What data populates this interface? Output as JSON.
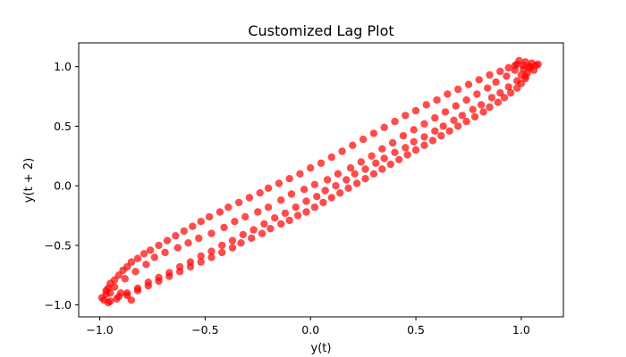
{
  "chart_data": {
    "type": "scatter",
    "title": "Customized Lag Plot",
    "xlabel": "y(t)",
    "ylabel": "y(t + 2)",
    "xlim": [
      -1.1,
      1.2
    ],
    "ylim": [
      -1.1,
      1.2
    ],
    "xticks": [
      -1.0,
      -0.5,
      0.0,
      0.5,
      1.0
    ],
    "yticks": [
      -1.0,
      -0.5,
      0.0,
      0.5,
      1.0
    ],
    "xtick_labels": [
      "−1.0",
      "−0.5",
      "0.0",
      "0.5",
      "1.0"
    ],
    "ytick_labels": [
      "−1.0",
      "−0.5",
      "0.0",
      "0.5",
      "1.0"
    ],
    "grid": false,
    "marker_color": "#ff0000",
    "marker_alpha": 0.7,
    "series": [
      {
        "values": [
          [
            -0.98,
            -0.96
          ],
          [
            -0.97,
            -0.91
          ],
          [
            -0.96,
            -0.86
          ],
          [
            -0.95,
            -0.82
          ],
          [
            -0.93,
            -0.79
          ],
          [
            -0.91,
            -0.75
          ],
          [
            -0.89,
            -0.71
          ],
          [
            -0.87,
            -0.68
          ],
          [
            -0.85,
            -0.64
          ],
          [
            -0.82,
            -0.61
          ],
          [
            -0.79,
            -0.57
          ],
          [
            -0.76,
            -0.54
          ],
          [
            -0.72,
            -0.5
          ],
          [
            -0.68,
            -0.46
          ],
          [
            -0.64,
            -0.42
          ],
          [
            -0.6,
            -0.38
          ],
          [
            -0.56,
            -0.34
          ],
          [
            -0.52,
            -0.3
          ],
          [
            -0.48,
            -0.26
          ],
          [
            -0.43,
            -0.22
          ],
          [
            -0.39,
            -0.18
          ],
          [
            -0.34,
            -0.14
          ],
          [
            -0.29,
            -0.1
          ],
          [
            -0.24,
            -0.06
          ],
          [
            -0.2,
            -0.02
          ],
          [
            -0.15,
            0.02
          ],
          [
            -0.1,
            0.06
          ],
          [
            -0.05,
            0.1
          ],
          [
            0.0,
            0.15
          ],
          [
            0.05,
            0.19
          ],
          [
            0.1,
            0.24
          ],
          [
            0.15,
            0.29
          ],
          [
            0.2,
            0.34
          ],
          [
            0.25,
            0.39
          ],
          [
            0.3,
            0.44
          ],
          [
            0.35,
            0.49
          ],
          [
            0.4,
            0.54
          ],
          [
            0.45,
            0.59
          ],
          [
            0.5,
            0.63
          ],
          [
            0.55,
            0.68
          ],
          [
            0.6,
            0.72
          ],
          [
            0.65,
            0.77
          ],
          [
            0.7,
            0.81
          ],
          [
            0.75,
            0.85
          ],
          [
            0.8,
            0.89
          ],
          [
            0.85,
            0.93
          ],
          [
            0.9,
            0.96
          ],
          [
            0.94,
            0.99
          ],
          [
            0.98,
            1.02
          ],
          [
            1.02,
            1.04
          ],
          [
            1.05,
            1.03
          ],
          [
            1.04,
            1.0
          ],
          [
            1.06,
            0.97
          ],
          [
            1.03,
            0.95
          ],
          [
            0.99,
            1.05
          ],
          [
            1.01,
            0.98
          ],
          [
            0.97,
            1.01
          ],
          [
            1.08,
            1.02
          ],
          [
            1.0,
            0.93
          ],
          [
            1.02,
            0.9
          ],
          [
            1.0,
            0.86
          ],
          [
            0.98,
            0.82
          ],
          [
            0.95,
            0.78
          ],
          [
            0.92,
            0.74
          ],
          [
            0.89,
            0.7
          ],
          [
            0.85,
            0.66
          ],
          [
            0.82,
            0.62
          ],
          [
            0.78,
            0.58
          ],
          [
            0.74,
            0.54
          ],
          [
            0.7,
            0.5
          ],
          [
            0.66,
            0.46
          ],
          [
            0.62,
            0.42
          ],
          [
            0.58,
            0.38
          ],
          [
            0.54,
            0.34
          ],
          [
            0.5,
            0.3
          ],
          [
            0.46,
            0.26
          ],
          [
            0.42,
            0.22
          ],
          [
            0.38,
            0.18
          ],
          [
            0.34,
            0.14
          ],
          [
            0.3,
            0.1
          ],
          [
            0.26,
            0.06
          ],
          [
            0.22,
            0.02
          ],
          [
            0.18,
            -0.02
          ],
          [
            0.14,
            -0.06
          ],
          [
            0.1,
            -0.1
          ],
          [
            0.06,
            -0.14
          ],
          [
            0.02,
            -0.18
          ],
          [
            -0.02,
            -0.22
          ],
          [
            -0.06,
            -0.25
          ],
          [
            -0.1,
            -0.29
          ],
          [
            -0.14,
            -0.32
          ],
          [
            -0.19,
            -0.36
          ],
          [
            -0.23,
            -0.4
          ],
          [
            -0.28,
            -0.44
          ],
          [
            -0.33,
            -0.48
          ],
          [
            -0.37,
            -0.52
          ],
          [
            -0.42,
            -0.56
          ],
          [
            -0.47,
            -0.6
          ],
          [
            -0.52,
            -0.64
          ],
          [
            -0.57,
            -0.68
          ],
          [
            -0.62,
            -0.72
          ],
          [
            -0.67,
            -0.76
          ],
          [
            -0.72,
            -0.8
          ],
          [
            -0.77,
            -0.84
          ],
          [
            -0.82,
            -0.88
          ],
          [
            -0.87,
            -0.92
          ],
          [
            -0.92,
            -0.95
          ],
          [
            -0.96,
            -0.98
          ],
          [
            -0.99,
            -0.94
          ],
          [
            -0.97,
            -0.88
          ],
          [
            -0.95,
            -0.97
          ],
          [
            -0.9,
            -0.9
          ],
          [
            -0.93,
            -0.85
          ],
          [
            -0.85,
            -0.96
          ],
          [
            -0.88,
            -0.78
          ],
          [
            -0.83,
            -0.72
          ],
          [
            -0.78,
            -0.66
          ],
          [
            -0.74,
            -0.6
          ],
          [
            -0.69,
            -0.56
          ],
          [
            -0.63,
            -0.52
          ],
          [
            -0.58,
            -0.48
          ],
          [
            -0.53,
            -0.44
          ],
          [
            -0.47,
            -0.4
          ],
          [
            -0.41,
            -0.35
          ],
          [
            -0.36,
            -0.3
          ],
          [
            -0.31,
            -0.26
          ],
          [
            -0.25,
            -0.22
          ],
          [
            -0.2,
            -0.18
          ],
          [
            -0.14,
            -0.12
          ],
          [
            -0.09,
            -0.07
          ],
          [
            -0.03,
            -0.03
          ],
          [
            0.02,
            0.01
          ],
          [
            0.08,
            0.05
          ],
          [
            0.13,
            0.1
          ],
          [
            0.19,
            0.15
          ],
          [
            0.24,
            0.2
          ],
          [
            0.29,
            0.25
          ],
          [
            0.34,
            0.31
          ],
          [
            0.39,
            0.36
          ],
          [
            0.44,
            0.42
          ],
          [
            0.49,
            0.47
          ],
          [
            0.54,
            0.52
          ],
          [
            0.59,
            0.57
          ],
          [
            0.64,
            0.62
          ],
          [
            0.69,
            0.67
          ],
          [
            0.74,
            0.72
          ],
          [
            0.79,
            0.77
          ],
          [
            0.84,
            0.82
          ],
          [
            0.88,
            0.87
          ],
          [
            0.93,
            0.92
          ],
          [
            0.97,
            0.97
          ],
          [
            1.01,
            1.01
          ],
          [
            1.04,
            0.99
          ],
          [
            1.07,
            1.01
          ],
          [
            1.02,
            0.92
          ],
          [
            0.98,
            0.88
          ],
          [
            0.94,
            0.83
          ],
          [
            0.9,
            0.78
          ],
          [
            0.86,
            0.74
          ],
          [
            0.81,
            0.68
          ],
          [
            0.77,
            0.64
          ],
          [
            0.72,
            0.59
          ],
          [
            0.68,
            0.55
          ],
          [
            0.63,
            0.5
          ],
          [
            0.59,
            0.46
          ],
          [
            0.54,
            0.41
          ],
          [
            0.49,
            0.37
          ],
          [
            0.45,
            0.32
          ],
          [
            0.4,
            0.28
          ],
          [
            0.35,
            0.23
          ],
          [
            0.31,
            0.19
          ],
          [
            0.26,
            0.14
          ],
          [
            0.21,
            0.1
          ],
          [
            0.17,
            0.05
          ],
          [
            0.12,
            0.0
          ],
          [
            0.07,
            -0.04
          ],
          [
            0.03,
            -0.09
          ],
          [
            -0.02,
            -0.13
          ],
          [
            -0.07,
            -0.18
          ],
          [
            -0.12,
            -0.23
          ],
          [
            -0.17,
            -0.27
          ],
          [
            -0.22,
            -0.32
          ],
          [
            -0.27,
            -0.37
          ],
          [
            -0.32,
            -0.41
          ],
          [
            -0.37,
            -0.46
          ],
          [
            -0.42,
            -0.5
          ],
          [
            -0.47,
            -0.55
          ],
          [
            -0.52,
            -0.59
          ],
          [
            -0.57,
            -0.64
          ],
          [
            -0.62,
            -0.68
          ],
          [
            -0.67,
            -0.73
          ],
          [
            -0.72,
            -0.77
          ],
          [
            -0.77,
            -0.81
          ],
          [
            -0.82,
            -0.86
          ],
          [
            -0.87,
            -0.9
          ],
          [
            -0.91,
            -0.93
          ],
          [
            -0.95,
            -0.9
          ]
        ]
      }
    ]
  }
}
